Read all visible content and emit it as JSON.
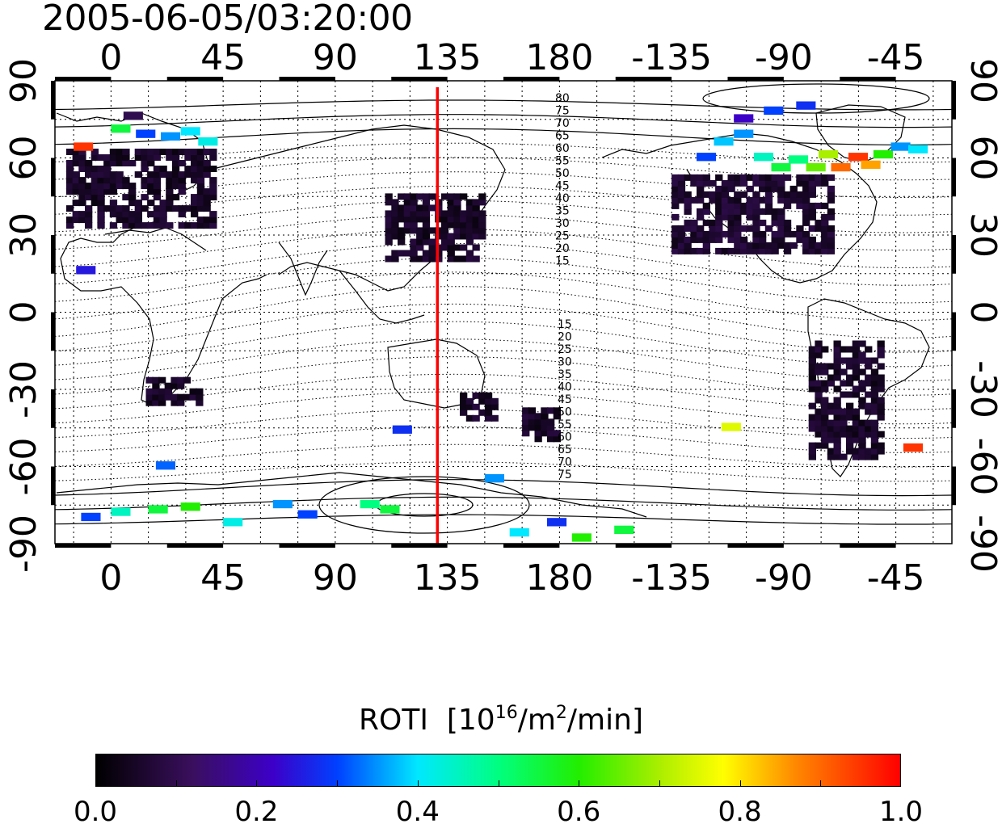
{
  "title": "2005-06-05/03:20:00",
  "colors": {
    "meridian_line": "#ff0000",
    "coastline": "#000000",
    "grid": "#000000"
  },
  "map": {
    "x_range": [
      -22.5,
      337.5
    ],
    "y_range": [
      -90,
      90
    ],
    "x_ticks_top": [
      "0",
      "45",
      "90",
      "135",
      "180",
      "-135",
      "-90",
      "-45"
    ],
    "x_ticks_bottom": [
      "0",
      "45",
      "90",
      "135",
      "180",
      "-135",
      "-90",
      "-45"
    ],
    "x_tick_positions": [
      0,
      45,
      90,
      135,
      180,
      225,
      270,
      315
    ],
    "y_ticks_left": [
      "90",
      "60",
      "30",
      "0",
      "-30",
      "-60",
      "-90"
    ],
    "y_ticks_right": [
      "90",
      "60",
      "30",
      "0",
      "-30",
      "-60",
      "-90"
    ],
    "y_tick_positions": [
      90,
      60,
      30,
      0,
      -30,
      -60,
      -90
    ],
    "grid_step": 15,
    "selected_meridian_longitude": 131,
    "magnetic_latitude_labels_north": [
      "80",
      "75",
      "70",
      "65",
      "60",
      "55",
      "50",
      "45",
      "40",
      "35",
      "30",
      "25",
      "20",
      "15"
    ],
    "magnetic_latitude_labels_south": [
      "15",
      "20",
      "25",
      "30",
      "35",
      "40",
      "45",
      "50",
      "55",
      "60",
      "65",
      "70",
      "75"
    ]
  },
  "colorbar": {
    "title": "ROTI",
    "unit_prefix": "[10",
    "unit_exp1": "16",
    "unit_mid": "/m",
    "unit_exp2": "2",
    "unit_suffix": "/min]",
    "range": [
      0.0,
      1.0
    ],
    "tick_labels": [
      "0.0",
      "0.2",
      "0.4",
      "0.6",
      "0.8",
      "1.0"
    ],
    "tick_values": [
      0.0,
      0.2,
      0.4,
      0.6,
      0.8,
      1.0
    ],
    "stops": [
      {
        "v": 0.0,
        "c": "#000000"
      },
      {
        "v": 0.12,
        "c": "#3a0f5e"
      },
      {
        "v": 0.22,
        "c": "#3c00c8"
      },
      {
        "v": 0.3,
        "c": "#0040ff"
      },
      {
        "v": 0.4,
        "c": "#00e8ff"
      },
      {
        "v": 0.5,
        "c": "#00ff80"
      },
      {
        "v": 0.6,
        "c": "#22ee00"
      },
      {
        "v": 0.7,
        "c": "#aaee00"
      },
      {
        "v": 0.78,
        "c": "#ffff00"
      },
      {
        "v": 0.87,
        "c": "#ff8800"
      },
      {
        "v": 1.0,
        "c": "#ff0000"
      }
    ]
  },
  "chart_data": {
    "type": "heatmap",
    "title": "2005-06-05/03:20:00",
    "value_label": "ROTI [10^16/m^2/min]",
    "value_range": [
      0.0,
      1.0
    ],
    "xlim": [
      -22.5,
      337.5
    ],
    "ylim": [
      -90,
      90
    ],
    "x_tick_labels": [
      "0",
      "45",
      "90",
      "135",
      "180",
      "-135",
      "-90",
      "-45"
    ],
    "y_tick_labels": [
      "90",
      "60",
      "30",
      "0",
      "-30",
      "-60",
      "-90"
    ],
    "regions": [
      {
        "lon": [
          -18,
          40
        ],
        "lat": [
          35,
          65
        ],
        "roti": 0.05
      },
      {
        "lon": [
          110,
          148
        ],
        "lat": [
          22,
          48
        ],
        "roti": 0.05
      },
      {
        "lon": [
          225,
          290
        ],
        "lat": [
          25,
          55
        ],
        "roti": 0.06
      },
      {
        "lon": [
          280,
          310
        ],
        "lat": [
          -55,
          -10
        ],
        "roti": 0.05
      },
      {
        "lon": [
          165,
          180
        ],
        "lat": [
          -48,
          -35
        ],
        "roti": 0.05
      },
      {
        "lon": [
          14,
          36
        ],
        "lat": [
          -34,
          -24
        ],
        "roti": 0.05
      },
      {
        "lon": [
          140,
          155
        ],
        "lat": [
          -40,
          -30
        ],
        "roti": 0.05
      }
    ],
    "points": [
      {
        "lon": 5,
        "lat": 78,
        "roti": 0.1
      },
      {
        "lon": 10,
        "lat": 71,
        "roti": 0.3
      },
      {
        "lon": 20,
        "lat": 70,
        "roti": 0.35
      },
      {
        "lon": 28,
        "lat": 72,
        "roti": 0.4
      },
      {
        "lon": 35,
        "lat": 68,
        "roti": 0.42
      },
      {
        "lon": 0,
        "lat": 73,
        "roti": 0.55
      },
      {
        "lon": -15,
        "lat": 66,
        "roti": 0.95
      },
      {
        "lon": 235,
        "lat": 62,
        "roti": 0.3
      },
      {
        "lon": 242,
        "lat": 68,
        "roti": 0.38
      },
      {
        "lon": 250,
        "lat": 71,
        "roti": 0.35
      },
      {
        "lon": 258,
        "lat": 62,
        "roti": 0.45
      },
      {
        "lon": 265,
        "lat": 58,
        "roti": 0.55
      },
      {
        "lon": 272,
        "lat": 61,
        "roti": 0.5
      },
      {
        "lon": 279,
        "lat": 58,
        "roti": 0.65
      },
      {
        "lon": 284,
        "lat": 63,
        "roti": 0.7
      },
      {
        "lon": 289,
        "lat": 58,
        "roti": 0.9
      },
      {
        "lon": 296,
        "lat": 62,
        "roti": 0.95
      },
      {
        "lon": 301,
        "lat": 59,
        "roti": 0.85
      },
      {
        "lon": 306,
        "lat": 63,
        "roti": 0.6
      },
      {
        "lon": 313,
        "lat": 66,
        "roti": 0.35
      },
      {
        "lon": 320,
        "lat": 65,
        "roti": 0.4
      },
      {
        "lon": 262,
        "lat": 80,
        "roti": 0.3
      },
      {
        "lon": 275,
        "lat": 82,
        "roti": 0.28
      },
      {
        "lon": 250,
        "lat": 77,
        "roti": 0.22
      },
      {
        "lon": -12,
        "lat": -78,
        "roti": 0.3
      },
      {
        "lon": 0,
        "lat": -76,
        "roti": 0.45
      },
      {
        "lon": 15,
        "lat": -75,
        "roti": 0.55
      },
      {
        "lon": 28,
        "lat": -74,
        "roti": 0.6
      },
      {
        "lon": 45,
        "lat": -80,
        "roti": 0.42
      },
      {
        "lon": 65,
        "lat": -73,
        "roti": 0.35
      },
      {
        "lon": 75,
        "lat": -77,
        "roti": 0.3
      },
      {
        "lon": 100,
        "lat": -73,
        "roti": 0.5
      },
      {
        "lon": 108,
        "lat": -75,
        "roti": 0.55
      },
      {
        "lon": 160,
        "lat": -84,
        "roti": 0.4
      },
      {
        "lon": 175,
        "lat": -80,
        "roti": 0.28
      },
      {
        "lon": 185,
        "lat": -86,
        "roti": 0.6
      },
      {
        "lon": 202,
        "lat": -83,
        "roti": 0.55
      },
      {
        "lon": 318,
        "lat": -51,
        "roti": 0.95
      },
      {
        "lon": 245,
        "lat": -43,
        "roti": 0.75
      },
      {
        "lon": 113,
        "lat": -44,
        "roti": 0.28
      },
      {
        "lon": 18,
        "lat": -58,
        "roti": 0.32
      },
      {
        "lon": 150,
        "lat": -63,
        "roti": 0.35
      },
      {
        "lon": -14,
        "lat": 18,
        "roti": 0.25
      }
    ]
  }
}
